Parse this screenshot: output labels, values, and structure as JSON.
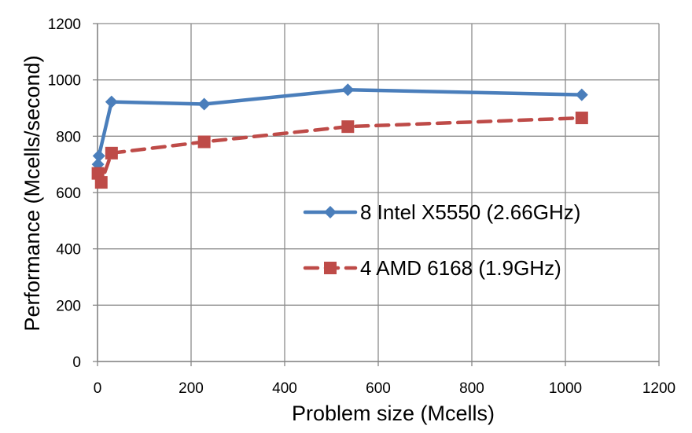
{
  "chart_data": {
    "type": "line",
    "xlabel": "Problem size (Mcells)",
    "ylabel": "Performance (Mcells/second)",
    "xlim": [
      0,
      1200
    ],
    "ylim": [
      0,
      1200
    ],
    "xticks": [
      "0",
      "200",
      "400",
      "600",
      "800",
      "1000",
      "1200"
    ],
    "yticks": [
      "0",
      "200",
      "400",
      "600",
      "800",
      "1000",
      "1200"
    ],
    "grid": true,
    "legend_position": "right-middle",
    "series": [
      {
        "name": "8 Intel X5550 (2.66GHz)",
        "color": "#4a7ebb",
        "marker": "diamond",
        "line_style": "solid",
        "points": [
          {
            "x": 1,
            "y": 700
          },
          {
            "x": 3,
            "y": 730
          },
          {
            "x": 30,
            "y": 922
          },
          {
            "x": 228,
            "y": 914
          },
          {
            "x": 535,
            "y": 965
          },
          {
            "x": 1035,
            "y": 947
          }
        ]
      },
      {
        "name": "4 AMD 6168 (1.9GHz)",
        "color": "#be4b48",
        "marker": "square",
        "line_style": "dashed",
        "points": [
          {
            "x": 1,
            "y": 668
          },
          {
            "x": 8,
            "y": 636
          },
          {
            "x": 30,
            "y": 740
          },
          {
            "x": 228,
            "y": 780
          },
          {
            "x": 535,
            "y": 834
          },
          {
            "x": 1035,
            "y": 865
          }
        ]
      }
    ]
  }
}
